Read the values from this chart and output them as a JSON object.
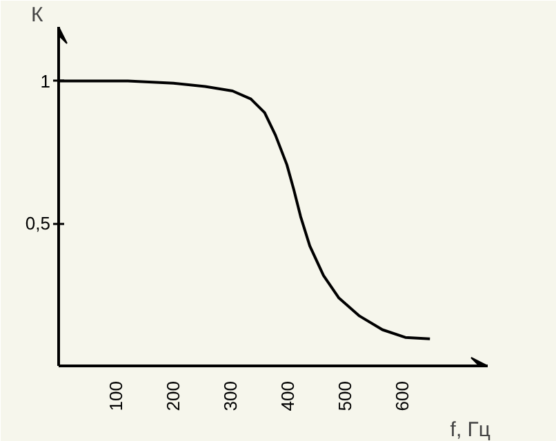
{
  "chart_data": {
    "type": "line",
    "xlabel": "f, Гц",
    "ylabel": "К",
    "xlim": [
      0,
      750
    ],
    "ylim": [
      0,
      1.19
    ],
    "xticks": [
      100,
      200,
      300,
      400,
      500,
      600
    ],
    "yticks": [
      {
        "value": 0.5,
        "label": "0,5"
      },
      {
        "value": 1,
        "label": "1"
      }
    ],
    "grid": false,
    "marker": "none",
    "line_style": "solid",
    "series": [
      {
        "color": "#000000",
        "x": [
          0,
          121,
          201,
          256,
          304,
          336,
          360,
          379,
          399,
          411,
          423,
          439,
          463,
          490,
          526,
          566,
          606,
          649
        ],
        "values": [
          1.0,
          1.0,
          0.992,
          0.981,
          0.965,
          0.937,
          0.889,
          0.81,
          0.706,
          0.619,
          0.524,
          0.421,
          0.317,
          0.238,
          0.175,
          0.127,
          0.1,
          0.095
        ]
      }
    ]
  }
}
